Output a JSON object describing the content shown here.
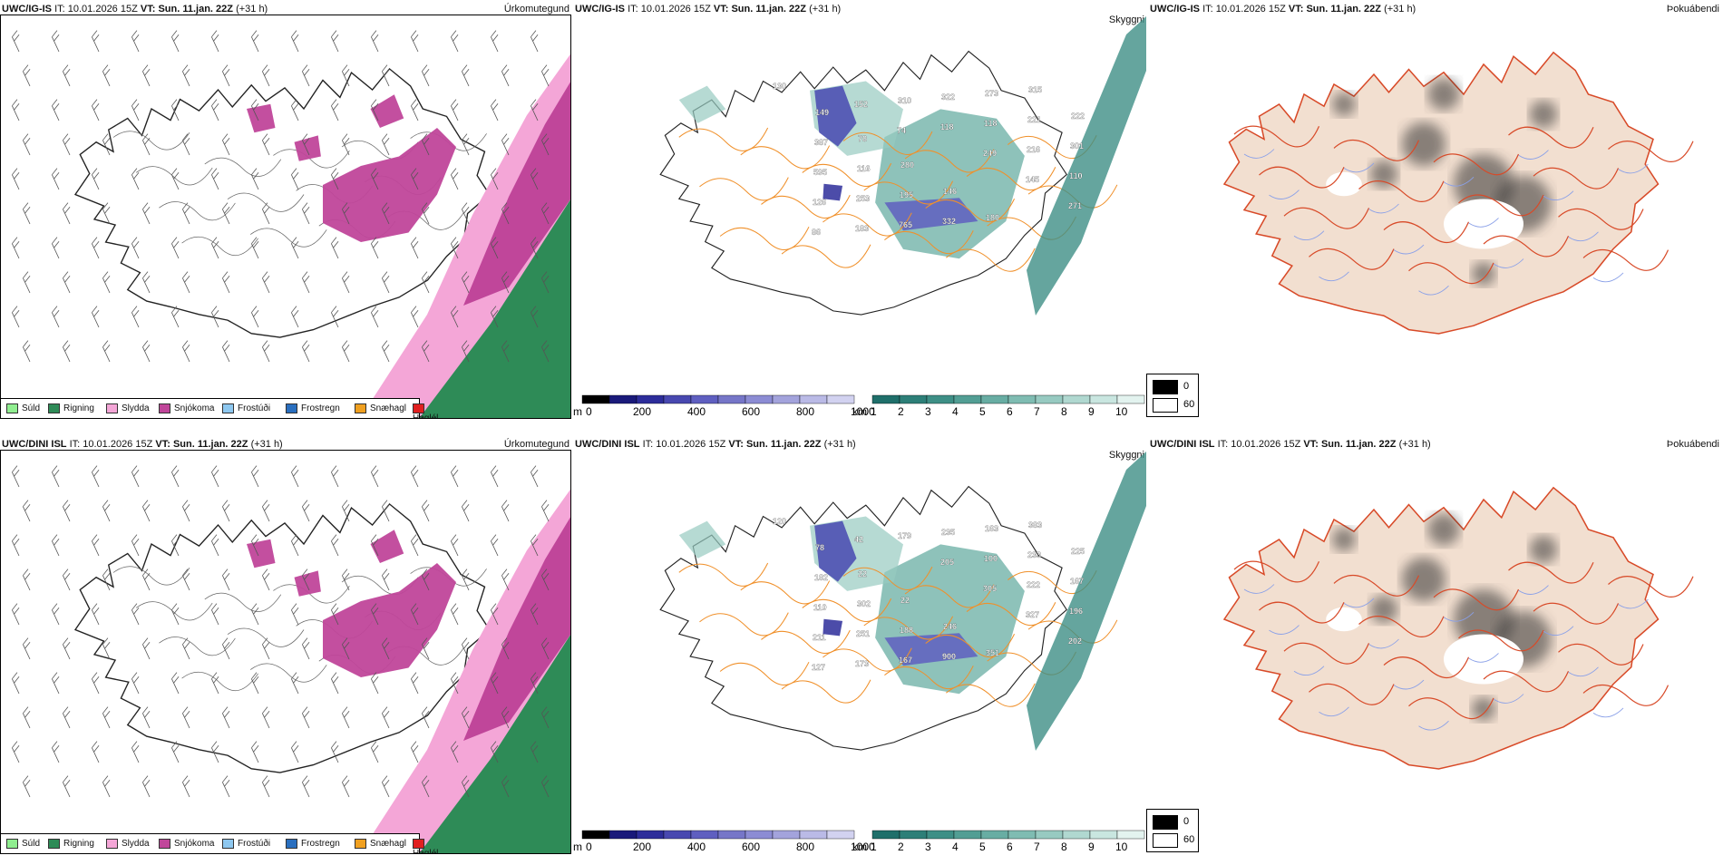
{
  "rows": [
    {
      "model": "UWC/IG-IS",
      "it_label": "IT:",
      "it_value": "10.01.2026 15Z",
      "vt_label": "VT:",
      "vt_value": "Sun. 11.jan. 22Z",
      "lead": "(+31 h)"
    },
    {
      "model": "UWC/DINI ISL",
      "it_label": "IT:",
      "it_value": "10.01.2026 15Z",
      "vt_label": "VT:",
      "vt_value": "Sun. 11.jan. 22Z",
      "lead": "(+31 h)"
    }
  ],
  "panels": {
    "precip_type": "Úrkomutegund",
    "visibility": "Skyggni",
    "fog_index": "Þokuábendi"
  },
  "precip_legend": [
    {
      "label": "Súld",
      "color": "#90ee90"
    },
    {
      "label": "Rigning",
      "color": "#2e8b57"
    },
    {
      "label": "Slydda",
      "color": "#f4a6d7"
    },
    {
      "label": "Snjókoma",
      "color": "#c0469a"
    },
    {
      "label": "Frostúði",
      "color": "#8ec8f0"
    },
    {
      "label": "Frostregn",
      "color": "#2a6fbf"
    },
    {
      "label": "Snæhagl",
      "color": "#f0a020"
    },
    {
      "label": "Haglél",
      "color": "#e02020"
    }
  ],
  "height_scale": {
    "unit": "m",
    "ticks": [
      "0",
      "200",
      "400",
      "600",
      "800",
      "1000"
    ],
    "colors": [
      "#000000",
      "#1a1a7a",
      "#2d2d9a",
      "#4848b0",
      "#5f5fc0",
      "#7676c8",
      "#8c8cd4",
      "#a3a3dc",
      "#babae6",
      "#d2d2f0"
    ]
  },
  "visibility_scale": {
    "unit": "km",
    "ticks": [
      "1",
      "2",
      "3",
      "4",
      "5",
      "6",
      "7",
      "8",
      "9",
      "10"
    ],
    "colors": [
      "#1f6f6a",
      "#2d7f78",
      "#3e8f86",
      "#529e94",
      "#68ada3",
      "#7fbcb2",
      "#97cac1",
      "#b0d8d0",
      "#c9e6e0",
      "#e3f3ef"
    ]
  },
  "fog_scale": {
    "labels": [
      "0",
      "60"
    ],
    "colors": [
      "#000000",
      "#ffffff"
    ]
  },
  "cloud_base_labels": [
    [
      "130",
      "149",
      "78",
      "280",
      "146",
      "180",
      "315",
      "222",
      "387",
      "116",
      "195",
      "332",
      "273",
      "221",
      "301",
      "595",
      "253",
      "765",
      "322",
      "118",
      "216",
      "110",
      "126",
      "183",
      "310",
      "118",
      "249",
      "145",
      "271",
      "86",
      "152",
      "74"
    ],
    [
      "120",
      "78",
      "22",
      "22",
      "246",
      "351",
      "383",
      "225",
      "182",
      "302",
      "188",
      "900",
      "163",
      "233",
      "167",
      "110",
      "251",
      "167",
      "235",
      "100",
      "222",
      "196",
      "211",
      "173",
      "179",
      "205",
      "305",
      "327",
      "202",
      "127",
      "42"
    ]
  ]
}
